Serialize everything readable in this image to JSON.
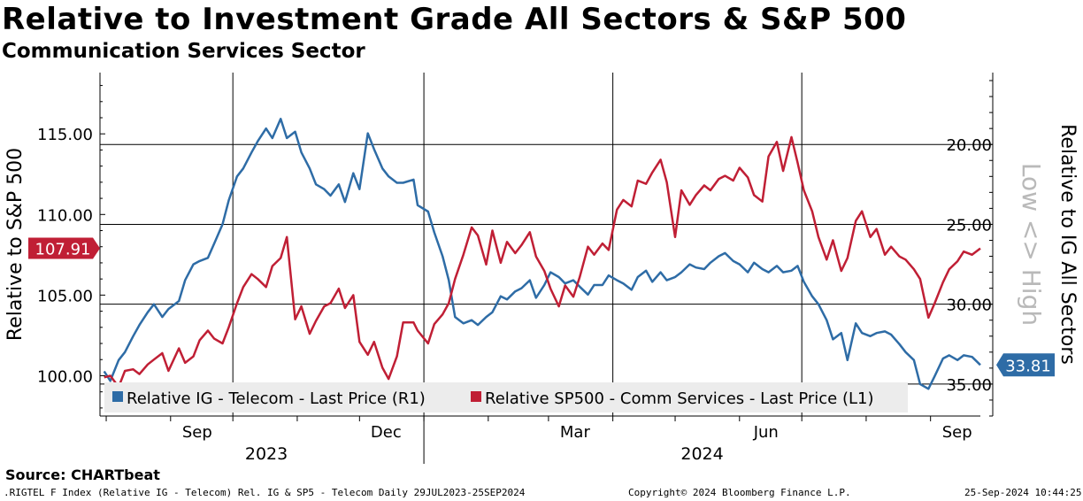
{
  "header": {
    "title": "Relative to Investment Grade All Sectors & S&P 500",
    "subtitle": "Communication Services Sector"
  },
  "footer": {
    "source": "Source: CHARTbeat",
    "ticker_info": ".RIGTEL F Index (Relative IG - Telecom) Rel. IG & SP5 - Telecom  Daily 29JUL2023-25SEP2024",
    "copyright": "Copyright© 2024 Bloomberg Finance L.P.",
    "timestamp": "25-Sep-2024 10:44:25"
  },
  "colors": {
    "blue": "#2e6ca6",
    "red": "#c01f35",
    "watermark": "#b9b9b9"
  },
  "chart_data": {
    "type": "line",
    "title": "Relative to Investment Grade All Sectors & S&P 500",
    "subtitle": "Communication Services Sector",
    "date_range": [
      "2023-07-29",
      "2024-09-25"
    ],
    "grid": true,
    "legend_position": "bottom-left",
    "left_axis": {
      "label": "Relative to S&P 500",
      "range": [
        97.5,
        118.8
      ],
      "ticks": [
        100,
        105,
        110,
        115
      ],
      "tick_labels": [
        "100.00",
        "105.00",
        "110.00",
        "115.00"
      ]
    },
    "right_axis": {
      "label": "Relative to IG All Sectors",
      "inverted": true,
      "range": [
        37.0,
        15.5
      ],
      "ticks": [
        20,
        25,
        30,
        35
      ],
      "tick_labels": [
        "20.00",
        "25.00",
        "30.00",
        "35.00"
      ]
    },
    "right_axis_watermark": "Low <> High",
    "x_axis": {
      "month_labels": [
        {
          "label": "Sep",
          "date": "2023-09-01"
        },
        {
          "label": "Dec",
          "date": "2023-12-01"
        },
        {
          "label": "Mar",
          "date": "2024-03-01"
        },
        {
          "label": "Jun",
          "date": "2024-06-01"
        },
        {
          "label": "Sep",
          "date": "2024-09-01"
        }
      ],
      "year_labels": [
        "2023",
        "2024"
      ]
    },
    "series": [
      {
        "name": "Relative IG - Telecom - Last Price (R1)",
        "axis": "right",
        "color": "blue",
        "last_label": "33.81",
        "points": [
          [
            "2023-07-31",
            34.2
          ],
          [
            "2023-08-03",
            34.8
          ],
          [
            "2023-08-07",
            33.5
          ],
          [
            "2023-08-10",
            33.0
          ],
          [
            "2023-08-14",
            32.0
          ],
          [
            "2023-08-17",
            31.3
          ],
          [
            "2023-08-21",
            30.5
          ],
          [
            "2023-08-24",
            30.0
          ],
          [
            "2023-08-28",
            30.8
          ],
          [
            "2023-08-31",
            30.3
          ],
          [
            "2023-09-05",
            29.8
          ],
          [
            "2023-09-08",
            28.5
          ],
          [
            "2023-09-12",
            27.5
          ],
          [
            "2023-09-15",
            27.3
          ],
          [
            "2023-09-19",
            27.1
          ],
          [
            "2023-09-22",
            26.2
          ],
          [
            "2023-09-26",
            25.0
          ],
          [
            "2023-09-29",
            23.5
          ],
          [
            "2023-10-03",
            22.0
          ],
          [
            "2023-10-06",
            21.5
          ],
          [
            "2023-10-10",
            20.5
          ],
          [
            "2023-10-13",
            19.8
          ],
          [
            "2023-10-17",
            19.0
          ],
          [
            "2023-10-20",
            19.6
          ],
          [
            "2023-10-24",
            18.4
          ],
          [
            "2023-10-27",
            19.6
          ],
          [
            "2023-10-31",
            19.2
          ],
          [
            "2023-11-03",
            20.5
          ],
          [
            "2023-11-07",
            21.5
          ],
          [
            "2023-11-10",
            22.5
          ],
          [
            "2023-11-14",
            22.8
          ],
          [
            "2023-11-17",
            23.2
          ],
          [
            "2023-11-21",
            22.5
          ],
          [
            "2023-11-24",
            23.6
          ],
          [
            "2023-11-28",
            21.8
          ],
          [
            "2023-12-01",
            22.8
          ],
          [
            "2023-12-05",
            19.3
          ],
          [
            "2023-12-08",
            20.3
          ],
          [
            "2023-12-12",
            21.5
          ],
          [
            "2023-12-15",
            22.0
          ],
          [
            "2023-12-19",
            22.4
          ],
          [
            "2023-12-22",
            22.4
          ],
          [
            "2023-12-27",
            22.2
          ],
          [
            "2023-12-29",
            23.8
          ],
          [
            "2024-01-03",
            24.2
          ],
          [
            "2024-01-06",
            25.5
          ],
          [
            "2024-01-10",
            27.0
          ],
          [
            "2024-01-13",
            28.5
          ],
          [
            "2024-01-16",
            30.8
          ],
          [
            "2024-01-20",
            31.2
          ],
          [
            "2024-01-24",
            31.0
          ],
          [
            "2024-01-27",
            31.3
          ],
          [
            "2024-01-31",
            30.8
          ],
          [
            "2024-02-03",
            30.5
          ],
          [
            "2024-02-07",
            29.5
          ],
          [
            "2024-02-10",
            29.7
          ],
          [
            "2024-02-14",
            29.2
          ],
          [
            "2024-02-17",
            29.0
          ],
          [
            "2024-02-21",
            28.5
          ],
          [
            "2024-02-24",
            29.6
          ],
          [
            "2024-02-28",
            28.8
          ],
          [
            "2024-03-02",
            28.0
          ],
          [
            "2024-03-06",
            28.3
          ],
          [
            "2024-03-09",
            28.7
          ],
          [
            "2024-03-13",
            28.5
          ],
          [
            "2024-03-16",
            28.9
          ],
          [
            "2024-03-20",
            29.4
          ],
          [
            "2024-03-23",
            28.8
          ],
          [
            "2024-03-27",
            28.8
          ],
          [
            "2024-03-30",
            28.2
          ],
          [
            "2024-04-03",
            28.5
          ],
          [
            "2024-04-06",
            28.7
          ],
          [
            "2024-04-10",
            29.1
          ],
          [
            "2024-04-13",
            28.3
          ],
          [
            "2024-04-17",
            27.9
          ],
          [
            "2024-04-20",
            28.6
          ],
          [
            "2024-04-24",
            28.0
          ],
          [
            "2024-04-27",
            28.5
          ],
          [
            "2024-05-01",
            28.3
          ],
          [
            "2024-05-04",
            28.0
          ],
          [
            "2024-05-08",
            27.5
          ],
          [
            "2024-05-11",
            27.7
          ],
          [
            "2024-05-15",
            27.8
          ],
          [
            "2024-05-18",
            27.4
          ],
          [
            "2024-05-22",
            27.0
          ],
          [
            "2024-05-25",
            26.8
          ],
          [
            "2024-05-29",
            27.3
          ],
          [
            "2024-06-01",
            27.5
          ],
          [
            "2024-06-05",
            28.0
          ],
          [
            "2024-06-08",
            27.4
          ],
          [
            "2024-06-12",
            27.8
          ],
          [
            "2024-06-15",
            28.0
          ],
          [
            "2024-06-19",
            27.6
          ],
          [
            "2024-06-22",
            28.0
          ],
          [
            "2024-06-26",
            27.9
          ],
          [
            "2024-06-29",
            27.6
          ],
          [
            "2024-07-02",
            28.6
          ],
          [
            "2024-07-06",
            29.5
          ],
          [
            "2024-07-09",
            30.0
          ],
          [
            "2024-07-13",
            31.0
          ],
          [
            "2024-07-16",
            32.2
          ],
          [
            "2024-07-20",
            31.8
          ],
          [
            "2024-07-23",
            33.5
          ],
          [
            "2024-07-27",
            31.2
          ],
          [
            "2024-07-30",
            31.8
          ],
          [
            "2024-08-03",
            32.0
          ],
          [
            "2024-08-06",
            31.8
          ],
          [
            "2024-08-10",
            31.7
          ],
          [
            "2024-08-13",
            31.9
          ],
          [
            "2024-08-17",
            32.5
          ],
          [
            "2024-08-20",
            33.0
          ],
          [
            "2024-08-24",
            33.5
          ],
          [
            "2024-08-27",
            35.0
          ],
          [
            "2024-08-31",
            35.3
          ],
          [
            "2024-09-03",
            34.5
          ],
          [
            "2024-09-07",
            33.4
          ],
          [
            "2024-09-10",
            33.2
          ],
          [
            "2024-09-14",
            33.5
          ],
          [
            "2024-09-17",
            33.2
          ],
          [
            "2024-09-21",
            33.3
          ],
          [
            "2024-09-25",
            33.8
          ]
        ]
      },
      {
        "name": "Relative SP500 - Comm Services - Last Price (L1)",
        "axis": "left",
        "color": "red",
        "last_label": "107.91",
        "points": [
          [
            "2023-07-31",
            99.9
          ],
          [
            "2023-08-03",
            100.0
          ],
          [
            "2023-08-07",
            99.3
          ],
          [
            "2023-08-10",
            100.3
          ],
          [
            "2023-08-14",
            100.4
          ],
          [
            "2023-08-17",
            100.1
          ],
          [
            "2023-08-21",
            100.7
          ],
          [
            "2023-08-24",
            101.0
          ],
          [
            "2023-08-28",
            101.4
          ],
          [
            "2023-08-31",
            100.3
          ],
          [
            "2023-09-05",
            101.7
          ],
          [
            "2023-09-08",
            100.8
          ],
          [
            "2023-09-12",
            101.2
          ],
          [
            "2023-09-15",
            102.2
          ],
          [
            "2023-09-19",
            102.8
          ],
          [
            "2023-09-22",
            102.3
          ],
          [
            "2023-09-26",
            102.0
          ],
          [
            "2023-09-29",
            103.0
          ],
          [
            "2023-10-03",
            104.5
          ],
          [
            "2023-10-06",
            105.5
          ],
          [
            "2023-10-10",
            106.3
          ],
          [
            "2023-10-13",
            106.0
          ],
          [
            "2023-10-17",
            105.5
          ],
          [
            "2023-10-20",
            106.8
          ],
          [
            "2023-10-24",
            107.3
          ],
          [
            "2023-10-27",
            108.6
          ],
          [
            "2023-10-31",
            103.5
          ],
          [
            "2023-11-03",
            104.3
          ],
          [
            "2023-11-07",
            102.6
          ],
          [
            "2023-11-10",
            103.4
          ],
          [
            "2023-11-14",
            104.3
          ],
          [
            "2023-11-17",
            104.5
          ],
          [
            "2023-11-21",
            105.4
          ],
          [
            "2023-11-24",
            104.2
          ],
          [
            "2023-11-28",
            105.0
          ],
          [
            "2023-12-01",
            102.1
          ],
          [
            "2023-12-05",
            101.3
          ],
          [
            "2023-12-08",
            102.1
          ],
          [
            "2023-12-12",
            100.5
          ],
          [
            "2023-12-15",
            99.8
          ],
          [
            "2023-12-19",
            101.2
          ],
          [
            "2023-12-22",
            103.3
          ],
          [
            "2023-12-27",
            103.3
          ],
          [
            "2023-12-29",
            102.8
          ],
          [
            "2024-01-03",
            102.0
          ],
          [
            "2024-01-06",
            103.2
          ],
          [
            "2024-01-10",
            103.8
          ],
          [
            "2024-01-13",
            104.5
          ],
          [
            "2024-01-16",
            106.0
          ],
          [
            "2024-01-20",
            107.5
          ],
          [
            "2024-01-24",
            109.2
          ],
          [
            "2024-01-27",
            108.7
          ],
          [
            "2024-01-31",
            106.9
          ],
          [
            "2024-02-03",
            109.0
          ],
          [
            "2024-02-07",
            107.0
          ],
          [
            "2024-02-10",
            108.3
          ],
          [
            "2024-02-14",
            107.6
          ],
          [
            "2024-02-17",
            108.1
          ],
          [
            "2024-02-21",
            108.9
          ],
          [
            "2024-02-24",
            107.4
          ],
          [
            "2024-02-28",
            106.5
          ],
          [
            "2024-03-02",
            105.4
          ],
          [
            "2024-03-06",
            104.3
          ],
          [
            "2024-03-09",
            105.6
          ],
          [
            "2024-03-13",
            104.9
          ],
          [
            "2024-03-16",
            106.1
          ],
          [
            "2024-03-20",
            108.0
          ],
          [
            "2024-03-23",
            107.5
          ],
          [
            "2024-03-27",
            108.2
          ],
          [
            "2024-03-30",
            107.8
          ],
          [
            "2024-04-03",
            110.3
          ],
          [
            "2024-04-06",
            110.9
          ],
          [
            "2024-04-10",
            110.5
          ],
          [
            "2024-04-13",
            112.1
          ],
          [
            "2024-04-17",
            111.9
          ],
          [
            "2024-04-20",
            112.6
          ],
          [
            "2024-04-24",
            113.4
          ],
          [
            "2024-04-27",
            112.0
          ],
          [
            "2024-05-01",
            108.6
          ],
          [
            "2024-05-04",
            111.5
          ],
          [
            "2024-05-08",
            110.6
          ],
          [
            "2024-05-11",
            111.2
          ],
          [
            "2024-05-15",
            111.8
          ],
          [
            "2024-05-18",
            111.5
          ],
          [
            "2024-05-22",
            112.2
          ],
          [
            "2024-05-25",
            112.4
          ],
          [
            "2024-05-29",
            112.1
          ],
          [
            "2024-06-01",
            112.9
          ],
          [
            "2024-06-05",
            112.3
          ],
          [
            "2024-06-08",
            111.2
          ],
          [
            "2024-06-12",
            110.8
          ],
          [
            "2024-06-15",
            113.6
          ],
          [
            "2024-06-19",
            114.5
          ],
          [
            "2024-06-22",
            112.7
          ],
          [
            "2024-06-26",
            114.8
          ],
          [
            "2024-06-29",
            113.2
          ],
          [
            "2024-07-02",
            111.5
          ],
          [
            "2024-07-06",
            110.2
          ],
          [
            "2024-07-09",
            108.6
          ],
          [
            "2024-07-13",
            107.2
          ],
          [
            "2024-07-16",
            108.4
          ],
          [
            "2024-07-20",
            106.5
          ],
          [
            "2024-07-23",
            107.3
          ],
          [
            "2024-07-27",
            109.6
          ],
          [
            "2024-07-30",
            110.2
          ],
          [
            "2024-08-03",
            108.6
          ],
          [
            "2024-08-06",
            109.1
          ],
          [
            "2024-08-10",
            107.5
          ],
          [
            "2024-08-13",
            108.0
          ],
          [
            "2024-08-17",
            107.4
          ],
          [
            "2024-08-20",
            107.2
          ],
          [
            "2024-08-24",
            106.6
          ],
          [
            "2024-08-27",
            106.0
          ],
          [
            "2024-08-31",
            103.6
          ],
          [
            "2024-09-03",
            104.5
          ],
          [
            "2024-09-07",
            105.8
          ],
          [
            "2024-09-10",
            106.6
          ],
          [
            "2024-09-14",
            107.1
          ],
          [
            "2024-09-17",
            107.7
          ],
          [
            "2024-09-21",
            107.5
          ],
          [
            "2024-09-25",
            107.9
          ]
        ]
      }
    ]
  }
}
